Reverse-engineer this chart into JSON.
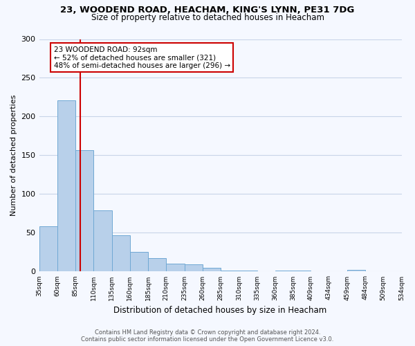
{
  "title": "23, WOODEND ROAD, HEACHAM, KING'S LYNN, PE31 7DG",
  "subtitle": "Size of property relative to detached houses in Heacham",
  "bar_values": [
    58,
    221,
    157,
    79,
    47,
    25,
    17,
    10,
    9,
    5,
    1,
    1,
    0,
    1,
    1,
    0,
    0,
    2,
    0,
    0
  ],
  "bin_edges": [
    35,
    60,
    85,
    110,
    135,
    160,
    185,
    210,
    235,
    260,
    285,
    310,
    335,
    360,
    385,
    409,
    434,
    459,
    484,
    509,
    534
  ],
  "bin_labels": [
    "35sqm",
    "60sqm",
    "85sqm",
    "110sqm",
    "135sqm",
    "160sqm",
    "185sqm",
    "210sqm",
    "235sqm",
    "260sqm",
    "285sqm",
    "310sqm",
    "335sqm",
    "360sqm",
    "385sqm",
    "409sqm",
    "434sqm",
    "459sqm",
    "484sqm",
    "509sqm",
    "534sqm"
  ],
  "bar_color": "#b8d0ea",
  "bar_edge_color": "#6fa8d4",
  "property_size": 92,
  "vline_color": "#cc0000",
  "annotation_text": "23 WOODEND ROAD: 92sqm\n← 52% of detached houses are smaller (321)\n48% of semi-detached houses are larger (296) →",
  "annotation_box_color": "#ffffff",
  "annotation_box_edge": "#cc0000",
  "ylabel": "Number of detached properties",
  "xlabel": "Distribution of detached houses by size in Heacham",
  "ylim": [
    0,
    300
  ],
  "yticks": [
    0,
    50,
    100,
    150,
    200,
    250,
    300
  ],
  "footer_line1": "Contains HM Land Registry data © Crown copyright and database right 2024.",
  "footer_line2": "Contains public sector information licensed under the Open Government Licence v3.0.",
  "background_color": "#f5f8ff",
  "grid_color": "#c8d4e8"
}
